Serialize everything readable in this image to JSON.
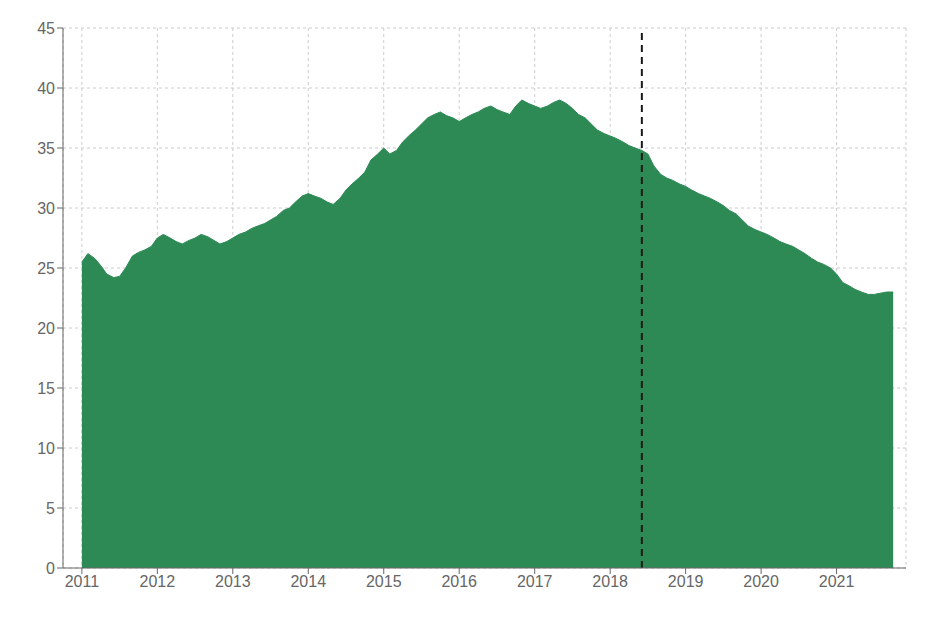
{
  "chart_data": {
    "type": "area",
    "color": "#2d8a55",
    "xlim": [
      2010.75,
      2021.92
    ],
    "ylim": [
      0,
      45
    ],
    "xticks": [
      2011,
      2012,
      2013,
      2014,
      2015,
      2016,
      2017,
      2018,
      2019,
      2020,
      2021
    ],
    "yticks": [
      0,
      5,
      10,
      15,
      20,
      25,
      30,
      35,
      40,
      45
    ],
    "grid": true,
    "vlines": [
      {
        "x": 2018.42,
        "color": "#1a1a1a",
        "line_style": "dashed"
      }
    ],
    "x": [
      2011.0,
      2011.08,
      2011.17,
      2011.25,
      2011.33,
      2011.42,
      2011.5,
      2011.58,
      2011.67,
      2011.75,
      2011.83,
      2011.92,
      2012.0,
      2012.08,
      2012.17,
      2012.25,
      2012.33,
      2012.42,
      2012.5,
      2012.58,
      2012.67,
      2012.75,
      2012.83,
      2012.92,
      2013.0,
      2013.08,
      2013.17,
      2013.25,
      2013.33,
      2013.42,
      2013.5,
      2013.58,
      2013.67,
      2013.75,
      2013.83,
      2013.92,
      2014.0,
      2014.08,
      2014.17,
      2014.25,
      2014.33,
      2014.42,
      2014.5,
      2014.58,
      2014.67,
      2014.75,
      2014.83,
      2014.92,
      2015.0,
      2015.08,
      2015.17,
      2015.25,
      2015.33,
      2015.42,
      2015.5,
      2015.58,
      2015.67,
      2015.75,
      2015.83,
      2015.92,
      2016.0,
      2016.08,
      2016.17,
      2016.25,
      2016.33,
      2016.42,
      2016.5,
      2016.58,
      2016.67,
      2016.75,
      2016.83,
      2016.92,
      2017.0,
      2017.08,
      2017.17,
      2017.25,
      2017.33,
      2017.42,
      2017.5,
      2017.58,
      2017.67,
      2017.75,
      2017.83,
      2017.92,
      2018.0,
      2018.08,
      2018.17,
      2018.25,
      2018.33,
      2018.42,
      2018.5,
      2018.58,
      2018.67,
      2018.75,
      2018.83,
      2018.92,
      2019.0,
      2019.08,
      2019.17,
      2019.25,
      2019.33,
      2019.42,
      2019.5,
      2019.58,
      2019.67,
      2019.75,
      2019.83,
      2019.92,
      2020.0,
      2020.08,
      2020.17,
      2020.25,
      2020.33,
      2020.42,
      2020.5,
      2020.58,
      2020.67,
      2020.75,
      2020.83,
      2020.92,
      2021.0,
      2021.08,
      2021.17,
      2021.25,
      2021.33,
      2021.42,
      2021.5,
      2021.58,
      2021.67,
      2021.75
    ],
    "values": [
      25.5,
      26.2,
      25.8,
      25.2,
      24.5,
      24.2,
      24.3,
      25.0,
      26.0,
      26.3,
      26.5,
      26.8,
      27.5,
      27.8,
      27.5,
      27.2,
      27.0,
      27.3,
      27.5,
      27.8,
      27.6,
      27.3,
      27.0,
      27.2,
      27.5,
      27.8,
      28.0,
      28.3,
      28.5,
      28.7,
      29.0,
      29.3,
      29.8,
      30.0,
      30.5,
      31.0,
      31.2,
      31.0,
      30.8,
      30.5,
      30.3,
      30.8,
      31.5,
      32.0,
      32.5,
      33.0,
      34.0,
      34.5,
      35.0,
      34.5,
      34.8,
      35.5,
      36.0,
      36.5,
      37.0,
      37.5,
      37.8,
      38.0,
      37.7,
      37.5,
      37.2,
      37.5,
      37.8,
      38.0,
      38.3,
      38.5,
      38.2,
      38.0,
      37.8,
      38.5,
      39.0,
      38.7,
      38.5,
      38.3,
      38.5,
      38.8,
      39.0,
      38.7,
      38.3,
      37.8,
      37.5,
      37.0,
      36.5,
      36.2,
      36.0,
      35.8,
      35.5,
      35.2,
      35.0,
      34.8,
      34.5,
      33.5,
      32.8,
      32.5,
      32.3,
      32.0,
      31.8,
      31.5,
      31.2,
      31.0,
      30.8,
      30.5,
      30.2,
      29.8,
      29.5,
      29.0,
      28.5,
      28.2,
      28.0,
      27.8,
      27.5,
      27.2,
      27.0,
      26.8,
      26.5,
      26.2,
      25.8,
      25.5,
      25.3,
      25.0,
      24.5,
      23.8,
      23.5,
      23.2,
      23.0,
      22.8,
      22.8,
      22.9,
      23.0,
      23.0
    ]
  }
}
